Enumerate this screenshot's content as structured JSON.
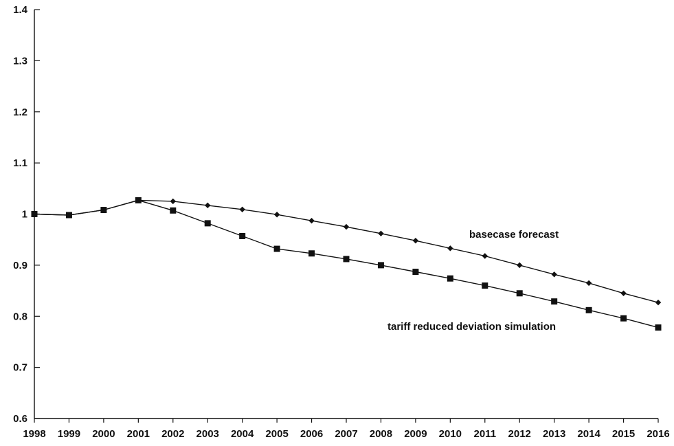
{
  "chart_data": {
    "type": "line",
    "title": "",
    "xlabel": "",
    "ylabel": "",
    "ylim": [
      0.6,
      1.4
    ],
    "yticks": [
      0.6,
      0.7,
      0.8,
      0.9,
      1,
      1.1,
      1.2,
      1.3,
      1.4
    ],
    "ytick_labels": [
      "0.6",
      "0.7",
      "0.8",
      "0.9",
      "1",
      "1.1",
      "1.2",
      "1.3",
      "1.4"
    ],
    "categories": [
      "1998",
      "1999",
      "2000",
      "2001",
      "2002",
      "2003",
      "2004",
      "2005",
      "2006",
      "2007",
      "2008",
      "2009",
      "2010",
      "2011",
      "2012",
      "2013",
      "2014",
      "2015",
      "2016"
    ],
    "grid": false,
    "legend": "none",
    "series": [
      {
        "name": "basecase forecast",
        "marker": "diamond",
        "color": "#111111",
        "values": [
          1.0,
          0.998,
          1.008,
          1.027,
          1.025,
          1.017,
          1.009,
          0.999,
          0.987,
          0.975,
          0.962,
          0.948,
          0.933,
          0.918,
          0.9,
          0.882,
          0.865,
          0.845,
          0.827
        ]
      },
      {
        "name": "tariff reduced deviation simulation",
        "marker": "square",
        "color": "#111111",
        "values": [
          1.0,
          0.998,
          1.008,
          1.027,
          1.007,
          0.982,
          0.957,
          0.932,
          0.923,
          0.912,
          0.9,
          0.887,
          0.874,
          0.86,
          0.845,
          0.829,
          0.812,
          0.796,
          0.778
        ]
      }
    ]
  }
}
